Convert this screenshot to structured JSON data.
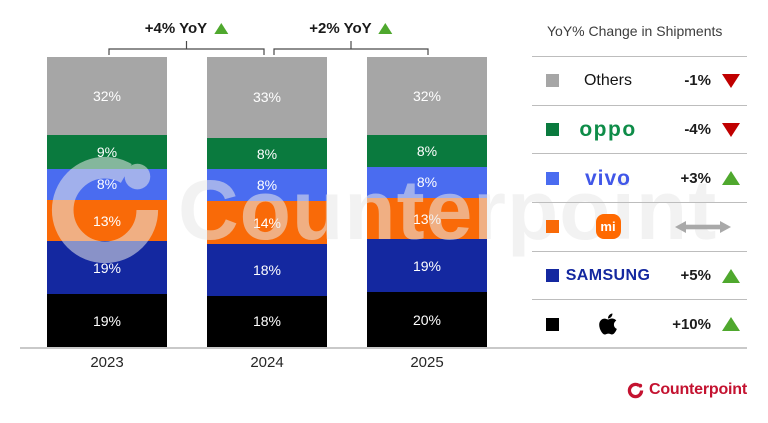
{
  "chart_data": {
    "type": "bar",
    "stacked": true,
    "unit": "%",
    "grid": false,
    "legend_position": "right",
    "categories": [
      "2023",
      "2024",
      "2025"
    ],
    "series": [
      {
        "name": "Apple",
        "color": "#000000",
        "values": [
          19,
          18,
          20
        ]
      },
      {
        "name": "Samsung",
        "color": "#1428a0",
        "values": [
          19,
          18,
          19
        ]
      },
      {
        "name": "Xiaomi",
        "color": "#f96a08",
        "values": [
          13,
          14,
          13
        ]
      },
      {
        "name": "vivo",
        "color": "#4a6cf0",
        "values": [
          8,
          8,
          8
        ]
      },
      {
        "name": "OPPO",
        "color": "#0a7a3e",
        "values": [
          9,
          8,
          8
        ]
      },
      {
        "name": "Others",
        "color": "#a6a6a6",
        "values": [
          32,
          33,
          32
        ]
      }
    ],
    "annotations": [
      {
        "label": "+4% YoY",
        "trend": "up",
        "from": "2023",
        "to": "2024"
      },
      {
        "label": "+2% YoY",
        "trend": "up",
        "from": "2024",
        "to": "2025"
      }
    ]
  },
  "legend": {
    "title": "YoY% Change in Shipments",
    "rows": [
      {
        "brand": "Others",
        "style": "text-plain",
        "logo_text": "Others",
        "swatch": "#a6a6a6",
        "change": "-1%",
        "trend": "down"
      },
      {
        "brand": "OPPO",
        "style": "wordmark-oppo",
        "logo_text": "oppo",
        "swatch": "#0a7a3e",
        "change": "-4%",
        "trend": "down"
      },
      {
        "brand": "vivo",
        "style": "wordmark-vivo",
        "logo_text": "vivo",
        "swatch": "#4a6cf0",
        "change": "+3%",
        "trend": "up"
      },
      {
        "brand": "Xiaomi",
        "style": "mi-badge",
        "logo_text": "mi",
        "swatch": "#f96a08",
        "change": "",
        "trend": "flat"
      },
      {
        "brand": "Samsung",
        "style": "wordmark-samsung",
        "logo_text": "SAMSUNG",
        "swatch": "#1428a0",
        "change": "+5%",
        "trend": "up"
      },
      {
        "brand": "Apple",
        "style": "apple-logo",
        "logo_text": "",
        "swatch": "#000000",
        "change": "+10%",
        "trend": "up"
      }
    ]
  },
  "colors": {
    "trend_up": "#4fa82e",
    "trend_down": "#c00000",
    "trend_flat": "#a9a9a9",
    "axis_line": "#c9c9c9",
    "brand_red": "#c41230"
  },
  "branding": {
    "logo_text": "Counterpoint"
  },
  "watermark": {
    "text": "Counterpoint"
  }
}
